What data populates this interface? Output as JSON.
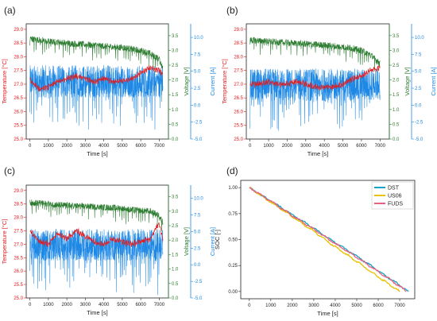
{
  "colors": {
    "temperature": "#e41a1c",
    "voltage": "#2e7d32",
    "current": "#1e88e5",
    "axis": "#222222"
  },
  "chart_data": [
    {
      "type": "line",
      "panel_label": "(a)",
      "xlabel": "Time [s]",
      "xlim": [
        -200,
        7500
      ],
      "x_ticks": [
        0,
        1000,
        2000,
        3000,
        4000,
        5000,
        6000,
        7000
      ],
      "left_axis": {
        "label": "Temperature [°C]",
        "lim": [
          25,
          29.2
        ],
        "ticks": [
          "25.0",
          "25.5",
          "26.0",
          "26.5",
          "27.0",
          "27.5",
          "28.0",
          "28.5",
          "29.0"
        ]
      },
      "right_axis_1": {
        "label": "Voltage [V]",
        "lim": [
          0,
          3.9
        ],
        "ticks": [
          "0.0",
          "0.5",
          "1.0",
          "1.5",
          "2.0",
          "2.5",
          "3.0",
          "3.5"
        ]
      },
      "right_axis_2": {
        "label": "Current [A]",
        "lim": [
          -5,
          12
        ],
        "ticks": [
          "-5.0",
          "-2.5",
          "0.0",
          "2.5",
          "5.0",
          "7.5",
          "10.0"
        ]
      },
      "series": [
        {
          "axis": "left",
          "x": [
            0,
            500,
            1000,
            1500,
            2000,
            2500,
            3000,
            3500,
            4000,
            4500,
            5000,
            5500,
            6000,
            6500,
            7000,
            7200
          ],
          "y": [
            27.2,
            26.8,
            26.9,
            27.1,
            27.2,
            27.3,
            27.2,
            27.1,
            27.2,
            27.1,
            27.1,
            27.2,
            27.4,
            27.6,
            27.5,
            27.4
          ]
        },
        {
          "axis": "right1",
          "x": [
            0,
            500,
            1000,
            1500,
            2000,
            2500,
            3000,
            3500,
            4000,
            4500,
            5000,
            5500,
            6000,
            6500,
            7000,
            7200
          ],
          "y": [
            3.4,
            3.35,
            3.3,
            3.28,
            3.25,
            3.22,
            3.2,
            3.18,
            3.15,
            3.12,
            3.1,
            3.05,
            3.0,
            2.9,
            2.7,
            2.4
          ]
        },
        {
          "axis": "right2",
          "x": [
            0,
            7200
          ],
          "y": [
            3.5,
            3.5
          ]
        }
      ]
    },
    {
      "type": "line",
      "panel_label": "(b)",
      "xlabel": "Time [s]",
      "xlim": [
        -200,
        7500
      ],
      "x_ticks": [
        0,
        1000,
        2000,
        3000,
        4000,
        5000,
        6000,
        7000
      ],
      "left_axis": {
        "label": "Temperature [°C]",
        "lim": [
          25,
          29.2
        ],
        "ticks": [
          "25.0",
          "25.5",
          "26.0",
          "26.5",
          "27.0",
          "27.5",
          "28.0",
          "28.5",
          "29.0"
        ]
      },
      "right_axis_1": {
        "label": "Voltage [V]",
        "lim": [
          0,
          3.9
        ],
        "ticks": [
          "0.0",
          "0.5",
          "1.0",
          "1.5",
          "2.0",
          "2.5",
          "3.0",
          "3.5"
        ]
      },
      "right_axis_2": {
        "label": "Current [A]",
        "lim": [
          -5,
          12
        ],
        "ticks": [
          "-5.0",
          "-2.5",
          "0.0",
          "2.5",
          "5.0",
          "7.5",
          "10.0"
        ]
      },
      "series": [
        {
          "axis": "left",
          "x": [
            0,
            500,
            1000,
            1500,
            2000,
            2500,
            3000,
            3500,
            4000,
            4500,
            5000,
            5500,
            6000,
            6500,
            7000
          ],
          "y": [
            27.0,
            27.0,
            27.1,
            27.0,
            27.0,
            27.1,
            27.0,
            26.9,
            26.9,
            26.9,
            27.0,
            27.2,
            27.3,
            27.5,
            27.6
          ]
        },
        {
          "axis": "right1",
          "x": [
            0,
            500,
            1000,
            1500,
            2000,
            2500,
            3000,
            3500,
            4000,
            4500,
            5000,
            5500,
            6000,
            6500,
            7000
          ],
          "y": [
            3.35,
            3.33,
            3.3,
            3.28,
            3.26,
            3.24,
            3.22,
            3.2,
            3.18,
            3.15,
            3.12,
            3.08,
            3.0,
            2.85,
            2.55
          ]
        },
        {
          "axis": "right2",
          "x": [
            0,
            7000
          ],
          "y": [
            3.0,
            3.0
          ]
        }
      ]
    },
    {
      "type": "line",
      "panel_label": "(c)",
      "xlabel": "Time [s]",
      "xlim": [
        -200,
        7500
      ],
      "x_ticks": [
        0,
        1000,
        2000,
        3000,
        4000,
        5000,
        6000,
        7000
      ],
      "left_axis": {
        "label": "Temperature [°C]",
        "lim": [
          25,
          29.2
        ],
        "ticks": [
          "25.0",
          "25.5",
          "26.0",
          "26.5",
          "27.0",
          "27.5",
          "28.0",
          "28.5",
          "29.0"
        ]
      },
      "right_axis_1": {
        "label": "Voltage [V]",
        "lim": [
          0,
          3.9
        ],
        "ticks": [
          "0.0",
          "0.5",
          "1.0",
          "1.5",
          "2.0",
          "2.5",
          "3.0",
          "3.5"
        ]
      },
      "right_axis_2": {
        "label": "Current [A]",
        "lim": [
          -5,
          12
        ],
        "ticks": [
          "-5.0",
          "-2.5",
          "0.0",
          "2.5",
          "5.0",
          "7.5",
          "10.0"
        ]
      },
      "series": [
        {
          "axis": "left",
          "x": [
            0,
            500,
            1000,
            1500,
            2000,
            2500,
            3000,
            3500,
            4000,
            4500,
            5000,
            5500,
            6000,
            6500,
            7000,
            7200
          ],
          "y": [
            27.5,
            27.1,
            27.0,
            27.4,
            27.2,
            27.5,
            27.3,
            27.1,
            27.0,
            27.2,
            27.1,
            27.0,
            27.1,
            27.2,
            27.8,
            27.2
          ]
        },
        {
          "axis": "right1",
          "x": [
            0,
            500,
            1000,
            1500,
            2000,
            2500,
            3000,
            3500,
            4000,
            4500,
            5000,
            5500,
            6000,
            6500,
            7000,
            7200
          ],
          "y": [
            3.3,
            3.28,
            3.25,
            3.22,
            3.2,
            3.18,
            3.17,
            3.15,
            3.13,
            3.12,
            3.1,
            3.05,
            3.02,
            3.0,
            2.85,
            2.6
          ]
        },
        {
          "axis": "right2",
          "x": [
            0,
            7200
          ],
          "y": [
            3.0,
            3.0
          ]
        }
      ]
    },
    {
      "type": "line",
      "panel_label": "(d)",
      "xlabel": "Time [s]",
      "ylabel": "SOC [-]",
      "xlim": [
        -400,
        7700
      ],
      "ylim": [
        -0.07,
        1.07
      ],
      "x_ticks": [
        0,
        1000,
        2000,
        3000,
        4000,
        5000,
        6000,
        7000
      ],
      "y_ticks": [
        "0.00",
        "0.25",
        "0.50",
        "0.75",
        "1.00"
      ],
      "legend_position": "top-right",
      "series": [
        {
          "name": "DST",
          "color": "#17a2c8",
          "x": [
            0,
            1000,
            2000,
            3000,
            4000,
            5000,
            6000,
            7000,
            7400
          ],
          "y": [
            1.0,
            0.87,
            0.74,
            0.61,
            0.47,
            0.34,
            0.2,
            0.06,
            0.0
          ]
        },
        {
          "name": "US06",
          "color": "#e6c200",
          "x": [
            0,
            1000,
            2000,
            3000,
            4000,
            5000,
            6000,
            7000
          ],
          "y": [
            1.0,
            0.86,
            0.72,
            0.58,
            0.43,
            0.29,
            0.14,
            0.0
          ]
        },
        {
          "name": "FUDS",
          "color": "#e8607e",
          "x": [
            0,
            1000,
            2000,
            3000,
            4000,
            5000,
            6000,
            7000,
            7300
          ],
          "y": [
            1.0,
            0.87,
            0.73,
            0.6,
            0.46,
            0.33,
            0.19,
            0.05,
            0.0
          ]
        }
      ]
    }
  ]
}
